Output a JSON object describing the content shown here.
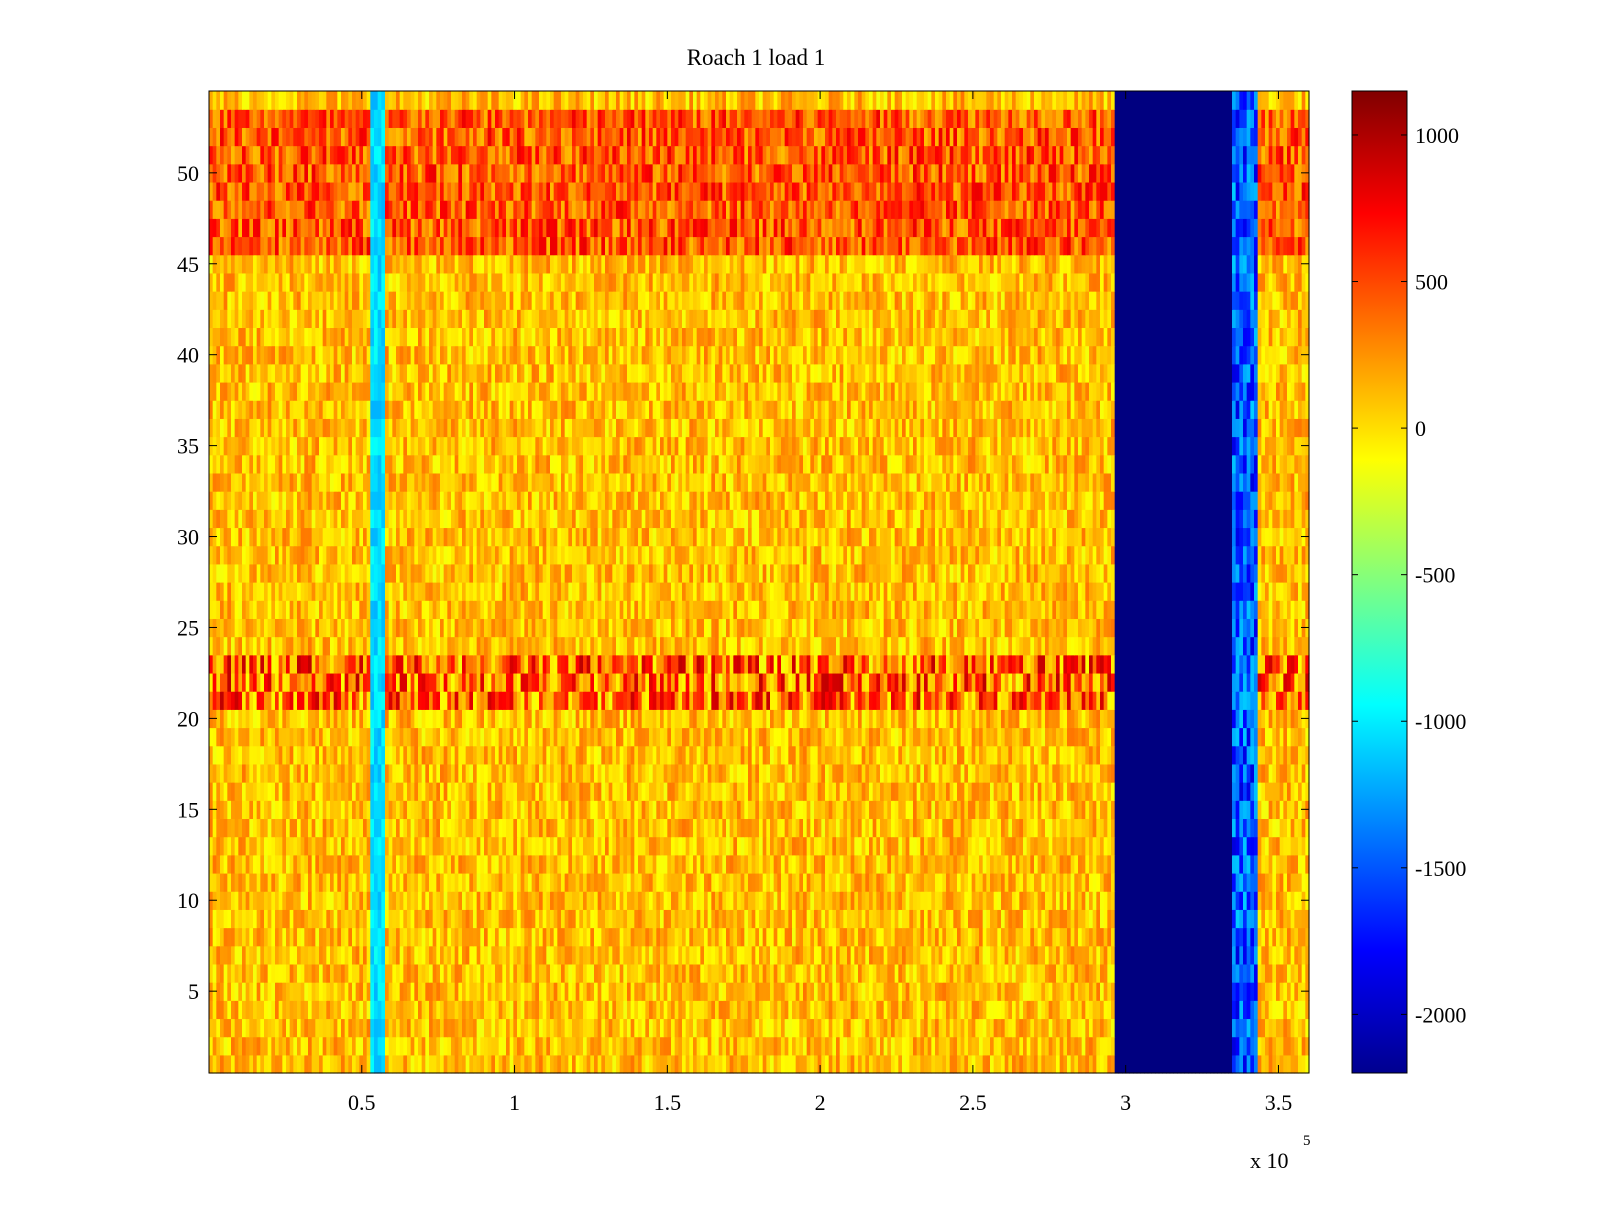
{
  "chart_data": {
    "type": "heatmap",
    "title": "Roach 1 load 1",
    "xlabel": "",
    "ylabel": "",
    "x_multiplier_label": {
      "base": "x 10",
      "exponent": "5"
    },
    "xlim": [
      0,
      3.6
    ],
    "x_ticks": [
      0.5,
      1,
      1.5,
      2,
      2.5,
      3,
      3.5
    ],
    "x_tick_labels": [
      "0.5",
      "1",
      "1.5",
      "2",
      "2.5",
      "3",
      "3.5"
    ],
    "ylim": [
      0.5,
      54.5
    ],
    "y_ticks": [
      5,
      10,
      15,
      20,
      25,
      30,
      35,
      40,
      45,
      50
    ],
    "y_tick_labels": [
      "5",
      "10",
      "15",
      "20",
      "25",
      "30",
      "35",
      "40",
      "45",
      "50"
    ],
    "colorbar": {
      "colormap": "jet",
      "clim": [
        -2200,
        1150
      ],
      "ticks": [
        1000,
        500,
        0,
        -500,
        -1000,
        -1500,
        -2000
      ],
      "tick_labels": [
        "1000",
        "500",
        "0",
        "-500",
        "-1000",
        "-1500",
        "-2000"
      ]
    },
    "rows": 54,
    "features": {
      "background_level": 100,
      "low_band_1": {
        "x_range": [
          0.53,
          0.58
        ],
        "value": -1050
      },
      "low_band_2": {
        "x_range": [
          2.96,
          3.35
        ],
        "value": -2200
      },
      "high_rows": {
        "rows": [
          21,
          22,
          23
        ],
        "value": 700
      },
      "upper_rows_stronger": {
        "rows": [
          46,
          47,
          48,
          49,
          50,
          51,
          52,
          53
        ],
        "value": 450
      }
    }
  }
}
